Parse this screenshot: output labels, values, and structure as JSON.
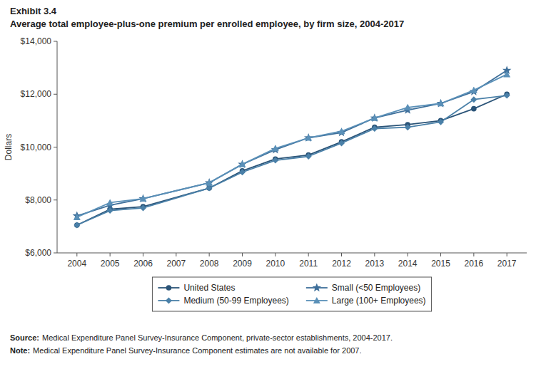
{
  "chart_data": {
    "type": "line",
    "title": "Exhibit 3.4",
    "subtitle": "Average total employee-plus-one premium per enrolled employee, by firm size, 2004-2017",
    "y_label": "Dollars",
    "annotations": [
      [
        "Source:",
        "Medical Expenditure Panel Survey-Insurance Component, private-sector establishments, 2004-2017."
      ],
      [
        "Note:",
        "Medical Expenditure Panel Survey-Insurance Component estimates are not available for 2007."
      ]
    ],
    "x": [
      2004,
      2005,
      2006,
      2008,
      2009,
      2010,
      2011,
      2012,
      2013,
      2014,
      2015,
      2016,
      2017
    ],
    "xlim": [
      2003.4,
      2017.6
    ],
    "xticks": [
      2004,
      2005,
      2006,
      2007,
      2008,
      2009,
      2010,
      2011,
      2012,
      2013,
      2014,
      2015,
      2016,
      2017
    ],
    "ylim": [
      6000,
      14000
    ],
    "yticks": [
      {
        "value": 6000,
        "label": "$6,000"
      },
      {
        "value": 8000,
        "label": "$8,000"
      },
      {
        "value": 10000,
        "label": "$10,000"
      },
      {
        "value": 12000,
        "label": "$12,000"
      },
      {
        "value": 14000,
        "label": "$14,000"
      }
    ],
    "grid": false,
    "legend": "bottom",
    "series": [
      {
        "name": "United States",
        "color": "#2B5478",
        "marker": "circle",
        "values": [
          7050,
          7650,
          7750,
          8450,
          9100,
          9550,
          9700,
          10200,
          10750,
          10850,
          11000,
          11450,
          12000
        ]
      },
      {
        "name": "Small (<50 Employees)",
        "color": "#3E6F9A",
        "marker": "star",
        "values": [
          7400,
          7800,
          8050,
          8650,
          9350,
          9900,
          10350,
          10550,
          11100,
          11400,
          11650,
          12100,
          12900
        ]
      },
      {
        "name": "Medium (50-99 Employees)",
        "color": "#4A80A8",
        "marker": "diamond",
        "values": [
          7050,
          7600,
          7700,
          8450,
          9050,
          9500,
          9650,
          10150,
          10700,
          10750,
          10950,
          11800,
          11950
        ]
      },
      {
        "name": "Large (100+ Employees)",
        "color": "#5A90B8",
        "marker": "triangle",
        "values": [
          7350,
          7900,
          8050,
          8650,
          9350,
          9950,
          10350,
          10600,
          11100,
          11500,
          11650,
          12150,
          12750
        ]
      }
    ]
  }
}
